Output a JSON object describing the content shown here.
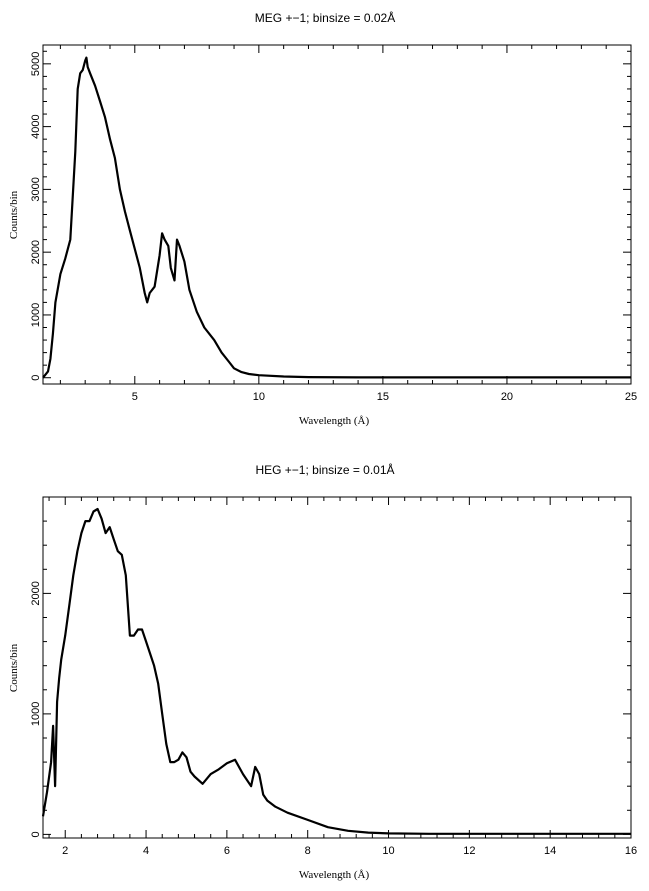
{
  "chart_data": [
    {
      "type": "line",
      "title": "MEG +−1; binsize = 0.02Å",
      "xlabel": "Wavelength (Å)",
      "ylabel": "Counts/bin",
      "xlim": [
        1.3,
        25
      ],
      "ylim": [
        -100,
        5300
      ],
      "xticks": [
        5,
        10,
        15,
        20,
        25
      ],
      "yticks": [
        0,
        1000,
        2000,
        3000,
        4000,
        5000
      ],
      "grid": false,
      "series": [
        {
          "x": [
            1.3,
            1.5,
            1.6,
            1.7,
            1.8,
            2.0,
            2.2,
            2.4,
            2.6,
            2.7,
            2.8,
            2.9,
            3.0,
            3.05,
            3.1,
            3.2,
            3.4,
            3.6,
            3.8,
            4.0,
            4.2,
            4.4,
            4.6,
            4.8,
            5.0,
            5.2,
            5.4,
            5.5,
            5.6,
            5.8,
            6.0,
            6.1,
            6.2,
            6.35,
            6.45,
            6.6,
            6.7,
            6.8,
            7.0,
            7.2,
            7.5,
            7.8,
            8.2,
            8.5,
            8.8,
            9.0,
            9.3,
            9.6,
            10.0,
            11.0,
            12.0,
            14.0,
            16.0,
            20.0,
            25.0
          ],
          "y": [
            0,
            100,
            300,
            700,
            1200,
            1650,
            1900,
            2200,
            3600,
            4600,
            4850,
            4900,
            5050,
            5100,
            4950,
            4850,
            4650,
            4400,
            4150,
            3800,
            3500,
            3000,
            2650,
            2350,
            2050,
            1750,
            1350,
            1200,
            1350,
            1450,
            1950,
            2300,
            2200,
            2100,
            1750,
            1550,
            2200,
            2100,
            1850,
            1400,
            1050,
            800,
            600,
            400,
            250,
            150,
            90,
            60,
            40,
            20,
            10,
            5,
            5,
            5,
            5
          ]
        }
      ]
    },
    {
      "type": "line",
      "title": "HEG +−1; binsize = 0.01Å",
      "xlabel": "Wavelength (Å)",
      "ylabel": "Counts/bin",
      "xlim": [
        1.45,
        16
      ],
      "ylim": [
        -30,
        2800
      ],
      "xticks": [
        2,
        4,
        6,
        8,
        10,
        12,
        14,
        16
      ],
      "yticks": [
        0,
        1000,
        2000
      ],
      "grid": false,
      "series": [
        {
          "x": [
            1.45,
            1.55,
            1.65,
            1.7,
            1.75,
            1.8,
            1.85,
            1.9,
            2.0,
            2.1,
            2.2,
            2.3,
            2.4,
            2.5,
            2.6,
            2.7,
            2.8,
            2.9,
            3.0,
            3.1,
            3.2,
            3.3,
            3.4,
            3.5,
            3.6,
            3.7,
            3.8,
            3.9,
            4.0,
            4.1,
            4.2,
            4.3,
            4.4,
            4.5,
            4.6,
            4.7,
            4.8,
            4.9,
            5.0,
            5.1,
            5.2,
            5.4,
            5.6,
            5.8,
            6.0,
            6.2,
            6.4,
            6.6,
            6.7,
            6.8,
            6.9,
            7.0,
            7.2,
            7.5,
            8.0,
            8.5,
            9.0,
            9.5,
            10.0,
            11.0,
            12.0,
            14.0,
            16.0
          ],
          "y": [
            150,
            350,
            600,
            900,
            400,
            1100,
            1300,
            1450,
            1650,
            1900,
            2150,
            2350,
            2500,
            2600,
            2600,
            2680,
            2700,
            2620,
            2500,
            2550,
            2450,
            2350,
            2320,
            2150,
            1650,
            1650,
            1700,
            1700,
            1600,
            1500,
            1400,
            1250,
            1000,
            750,
            600,
            600,
            620,
            680,
            640,
            520,
            480,
            420,
            500,
            540,
            590,
            620,
            500,
            400,
            560,
            500,
            330,
            280,
            230,
            180,
            120,
            60,
            30,
            15,
            8,
            5,
            5,
            5,
            5
          ]
        }
      ]
    }
  ]
}
